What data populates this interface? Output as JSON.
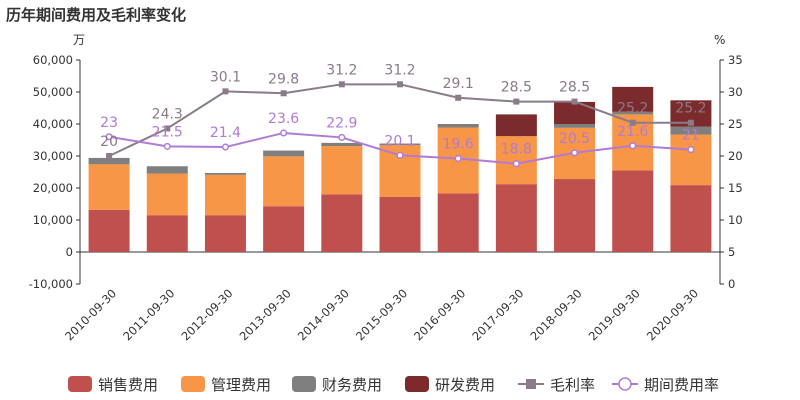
{
  "chart_data": {
    "type": "bar",
    "title": "历年期间费用及毛利率变化",
    "left_unit": "万",
    "right_unit": "%",
    "categories": [
      "2010-09-30",
      "2011-09-30",
      "2012-09-30",
      "2013-09-30",
      "2014-09-30",
      "2015-09-30",
      "2016-09-30",
      "2017-09-30",
      "2018-09-30",
      "2019-09-30",
      "2020-09-30"
    ],
    "left_axis": {
      "min": -10000,
      "max": 60000,
      "step": 10000,
      "ticks": [
        "-10,000",
        "0",
        "10,000",
        "20,000",
        "30,000",
        "40,000",
        "50,000",
        "60,000"
      ]
    },
    "right_axis": {
      "min": 0,
      "max": 35,
      "step": 5,
      "ticks": [
        "0",
        "5",
        "10",
        "15",
        "20",
        "25",
        "30",
        "35"
      ]
    },
    "grid": false,
    "legend_position": "bottom",
    "series": [
      {
        "name": "销售费用",
        "kind": "bar",
        "color": "#c0504d",
        "values": [
          13200,
          11500,
          11500,
          14300,
          18000,
          17200,
          18300,
          21200,
          22800,
          25500,
          20900
        ]
      },
      {
        "name": "管理费用",
        "kind": "bar",
        "color": "#f79646",
        "values": [
          14200,
          13000,
          12600,
          15600,
          15100,
          16200,
          20600,
          15000,
          16000,
          17500,
          15800
        ]
      },
      {
        "name": "财务费用",
        "kind": "bar",
        "color": "#7f7f7f",
        "values": [
          2000,
          2300,
          600,
          1800,
          1000,
          500,
          1100,
          0,
          1200,
          800,
          2500
        ]
      },
      {
        "name": "研发费用",
        "kind": "bar",
        "color": "#7b2b2b",
        "values": [
          0,
          0,
          0,
          0,
          0,
          0,
          0,
          6800,
          6900,
          7800,
          8200
        ]
      },
      {
        "name": "毛利率",
        "kind": "line",
        "axis": "right",
        "color": "#8a7a8a",
        "marker": "square",
        "values": [
          20,
          24.3,
          30.1,
          29.8,
          31.2,
          31.2,
          29.1,
          28.5,
          28.5,
          25.2,
          25.2
        ],
        "labels": [
          "20",
          "24.3",
          "30.1",
          "29.8",
          "31.2",
          "31.2",
          "29.1",
          "28.5",
          "28.5",
          "25.2",
          "25.2"
        ]
      },
      {
        "name": "期间费用率",
        "kind": "line",
        "axis": "right",
        "color": "#b07ad6",
        "marker": "circle",
        "values": [
          23,
          21.5,
          21.4,
          23.6,
          22.9,
          20.1,
          19.6,
          18.8,
          20.5,
          21.6,
          21
        ],
        "labels": [
          "23",
          "21.5",
          "21.4",
          "23.6",
          "22.9",
          "20.1",
          "19.6",
          "18.8",
          "20.5",
          "21.6",
          "21"
        ]
      }
    ]
  }
}
